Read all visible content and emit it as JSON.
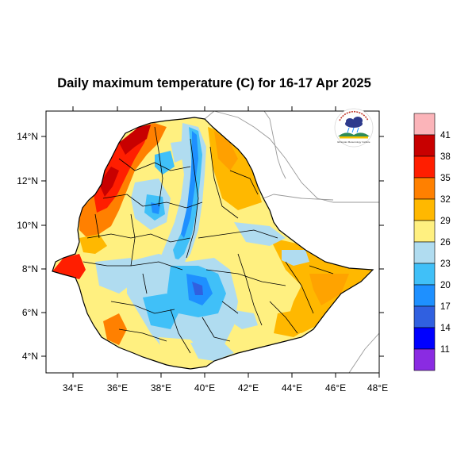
{
  "title": "Daily maximum temperature (C) for 16-17 Apr 2025",
  "x_ticks": [
    "34°E",
    "36°E",
    "38°E",
    "40°E",
    "42°E",
    "44°E",
    "46°E",
    "48°E"
  ],
  "y_ticks": [
    "4°N",
    "6°N",
    "8°N",
    "10°N",
    "12°N",
    "14°N"
  ],
  "colorbar": {
    "labels": [
      "41",
      "38",
      "35",
      "32",
      "29",
      "26",
      "23",
      "20",
      "17",
      "14",
      "11"
    ],
    "colors": [
      "#fbb4b9",
      "#c80000",
      "#ff1e00",
      "#ff8000",
      "#ffb800",
      "#fff080",
      "#b0dcf0",
      "#40c0f8",
      "#1e90ff",
      "#3060e0",
      "#0000ff",
      "#8a2be2"
    ]
  },
  "logo": {
    "caption": "Ethiopian Meteorology Institute",
    "icon": "cloud-rain-logo"
  },
  "map": {
    "region": "Ethiopia",
    "lon_range": [
      33,
      48
    ],
    "lat_range": [
      3,
      15
    ]
  }
}
